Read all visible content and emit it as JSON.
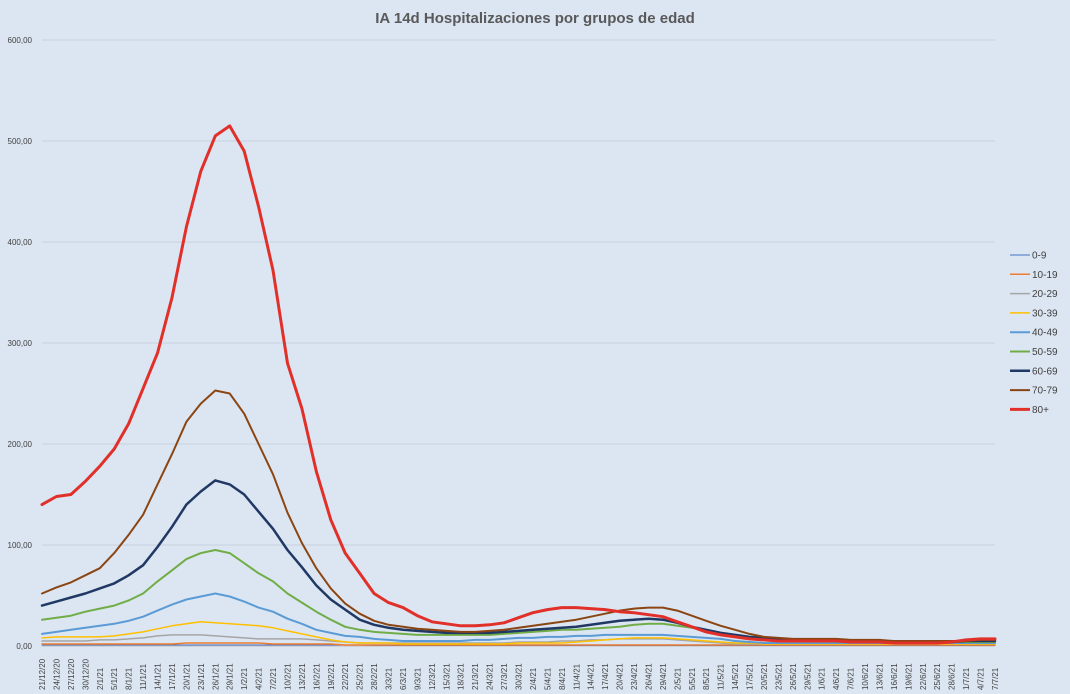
{
  "chart_data": {
    "type": "line",
    "title": "IA 14d Hospitalizaciones por grupos de edad",
    "xlabel": "",
    "ylabel": "",
    "ylim": [
      0,
      600
    ],
    "yticks": [
      "0,00",
      "100,00",
      "200,00",
      "300,00",
      "400,00",
      "500,00",
      "600,00"
    ],
    "ytick_values": [
      0,
      100,
      200,
      300,
      400,
      500,
      600
    ],
    "grid": true,
    "legend_position": "right",
    "x": [
      "21/12/20",
      "24/12/20",
      "27/12/20",
      "30/12/20",
      "2/1/21",
      "5/1/21",
      "8/1/21",
      "11/1/21",
      "14/1/21",
      "17/1/21",
      "20/1/21",
      "23/1/21",
      "26/1/21",
      "29/1/21",
      "1/2/21",
      "4/2/21",
      "7/2/21",
      "10/2/21",
      "13/2/21",
      "16/2/21",
      "19/2/21",
      "22/2/21",
      "25/2/21",
      "28/2/21",
      "3/3/21",
      "6/3/21",
      "9/3/21",
      "12/3/21",
      "15/3/21",
      "18/3/21",
      "21/3/21",
      "24/3/21",
      "27/3/21",
      "30/3/21",
      "2/4/21",
      "5/4/21",
      "8/4/21",
      "11/4/21",
      "14/4/21",
      "17/4/21",
      "20/4/21",
      "23/4/21",
      "26/4/21",
      "29/4/21",
      "2/5/21",
      "5/5/21",
      "8/5/21",
      "11/5/21",
      "14/5/21",
      "17/5/21",
      "20/5/21",
      "23/5/21",
      "26/5/21",
      "29/5/21",
      "1/6/21",
      "4/6/21",
      "7/6/21",
      "10/6/21",
      "13/6/21",
      "16/6/21",
      "19/6/21",
      "22/6/21",
      "25/6/21",
      "28/6/21",
      "1/7/21",
      "4/7/21",
      "7/7/21"
    ],
    "series": [
      {
        "name": "0-9",
        "color": "#4472c4",
        "width": 1,
        "values": [
          1,
          1,
          1,
          1,
          1,
          1,
          1,
          1,
          1,
          1,
          1,
          1,
          1,
          1,
          1,
          1,
          1,
          1,
          1,
          1,
          1,
          1,
          1,
          0.5,
          0.5,
          0.5,
          0.5,
          0.5,
          0.5,
          0.5,
          0.5,
          0.5,
          0.5,
          0.5,
          0.5,
          0.5,
          0.5,
          0.5,
          0.5,
          0.5,
          0.5,
          0.5,
          0.5,
          0.5,
          0.5,
          0.5,
          0.5,
          0.5,
          0.5,
          0.5,
          0.5,
          0.5,
          0.5,
          0.5,
          0.5,
          0.5,
          0.5,
          0.5,
          0.5,
          0.5,
          0.5,
          0.5,
          0.5,
          0.5,
          0.5,
          0.5,
          0.5
        ]
      },
      {
        "name": "10-19",
        "color": "#ed7d31",
        "width": 1.5,
        "values": [
          2,
          2,
          2,
          2,
          2,
          2,
          2,
          2,
          2,
          2,
          3,
          3,
          3,
          3,
          3,
          3,
          2,
          2,
          2,
          2,
          2,
          1,
          1,
          1,
          1,
          1,
          1,
          1,
          1,
          1,
          1,
          1,
          1,
          1,
          1,
          1,
          1,
          1,
          1,
          1,
          1,
          1,
          1,
          1,
          1,
          1,
          1,
          1,
          1,
          1,
          1,
          1,
          1,
          1,
          1,
          1,
          1,
          1,
          1,
          1,
          1,
          1,
          1,
          1,
          1,
          1,
          1
        ]
      },
      {
        "name": "20-29",
        "color": "#a5a5a5",
        "width": 1.5,
        "values": [
          5,
          5,
          5,
          5,
          6,
          6,
          7,
          8,
          10,
          11,
          11,
          11,
          10,
          9,
          8,
          7,
          7,
          7,
          7,
          6,
          5,
          4,
          3,
          3,
          3,
          3,
          3,
          3,
          3,
          3,
          3,
          3,
          3,
          4,
          4,
          4,
          5,
          5,
          6,
          6,
          7,
          7,
          7,
          7,
          6,
          5,
          4,
          3,
          2,
          2,
          2,
          2,
          2,
          2,
          2,
          2,
          2,
          2,
          2,
          2,
          2,
          2,
          2,
          2,
          2,
          2,
          2
        ]
      },
      {
        "name": "30-39",
        "color": "#ffc000",
        "width": 1.5,
        "values": [
          8,
          9,
          9,
          9,
          9,
          10,
          12,
          14,
          17,
          20,
          22,
          24,
          23,
          22,
          21,
          20,
          18,
          15,
          12,
          9,
          6,
          4,
          3,
          3,
          3,
          2,
          2,
          2,
          2,
          2,
          2,
          2,
          2,
          3,
          3,
          3,
          3,
          4,
          5,
          6,
          7,
          8,
          8,
          8,
          7,
          6,
          5,
          4,
          3,
          3,
          2,
          2,
          2,
          2,
          2,
          2,
          2,
          2,
          2,
          2,
          2,
          2,
          2,
          2,
          2,
          2,
          2
        ]
      },
      {
        "name": "40-49",
        "color": "#5b9bd5",
        "width": 2,
        "values": [
          12,
          14,
          16,
          18,
          20,
          22,
          25,
          29,
          35,
          41,
          46,
          49,
          52,
          49,
          44,
          38,
          34,
          27,
          22,
          16,
          13,
          10,
          9,
          7,
          6,
          5,
          5,
          5,
          5,
          5,
          6,
          6,
          7,
          8,
          8,
          9,
          9,
          10,
          10,
          11,
          11,
          11,
          11,
          11,
          10,
          9,
          8,
          7,
          5,
          4,
          3,
          3,
          3,
          3,
          3,
          3,
          3,
          3,
          3,
          3,
          3,
          3,
          3,
          3,
          3,
          3,
          3
        ]
      },
      {
        "name": "50-59",
        "color": "#70ad47",
        "width": 2,
        "values": [
          26,
          28,
          30,
          34,
          37,
          40,
          45,
          52,
          64,
          75,
          86,
          92,
          95,
          92,
          82,
          72,
          64,
          52,
          43,
          34,
          26,
          19,
          16,
          14,
          13,
          12,
          11,
          11,
          11,
          11,
          11,
          11,
          12,
          13,
          14,
          15,
          16,
          16,
          17,
          18,
          19,
          21,
          22,
          22,
          20,
          18,
          16,
          13,
          10,
          8,
          6,
          5,
          5,
          5,
          5,
          5,
          5,
          4,
          4,
          4,
          4,
          4,
          4,
          4,
          4,
          4,
          4
        ]
      },
      {
        "name": "60-69",
        "color": "#203864",
        "width": 2.5,
        "values": [
          40,
          44,
          48,
          52,
          57,
          62,
          70,
          80,
          98,
          118,
          140,
          153,
          164,
          160,
          150,
          133,
          116,
          95,
          78,
          60,
          46,
          36,
          26,
          21,
          18,
          16,
          15,
          14,
          13,
          13,
          13,
          13,
          14,
          15,
          16,
          17,
          18,
          19,
          21,
          23,
          25,
          26,
          27,
          26,
          23,
          19,
          16,
          13,
          11,
          9,
          8,
          7,
          6,
          6,
          5,
          5,
          5,
          4,
          4,
          4,
          4,
          4,
          4,
          4,
          5,
          5,
          5
        ]
      },
      {
        "name": "70-79",
        "color": "#8b4513",
        "width": 2,
        "values": [
          52,
          58,
          63,
          70,
          77,
          92,
          110,
          130,
          160,
          190,
          222,
          240,
          253,
          250,
          230,
          200,
          170,
          132,
          102,
          77,
          57,
          42,
          32,
          25,
          21,
          19,
          17,
          16,
          15,
          14,
          14,
          15,
          16,
          18,
          20,
          22,
          24,
          26,
          29,
          32,
          35,
          37,
          38,
          38,
          35,
          30,
          25,
          20,
          16,
          12,
          9,
          8,
          7,
          7,
          7,
          7,
          6,
          6,
          6,
          5,
          5,
          5,
          5,
          5,
          5,
          6,
          6
        ]
      },
      {
        "name": "80+",
        "color": "#e1302a",
        "width": 3,
        "values": [
          140,
          148,
          150,
          163,
          178,
          195,
          220,
          255,
          290,
          345,
          415,
          470,
          505,
          515,
          490,
          435,
          372,
          280,
          235,
          173,
          125,
          92,
          72,
          52,
          43,
          38,
          30,
          24,
          22,
          20,
          20,
          21,
          23,
          28,
          33,
          36,
          38,
          38,
          37,
          36,
          34,
          33,
          31,
          29,
          24,
          19,
          14,
          11,
          9,
          7,
          6,
          5,
          5,
          5,
          5,
          5,
          4,
          4,
          4,
          3,
          3,
          3,
          3,
          4,
          6,
          7,
          7
        ]
      }
    ]
  }
}
